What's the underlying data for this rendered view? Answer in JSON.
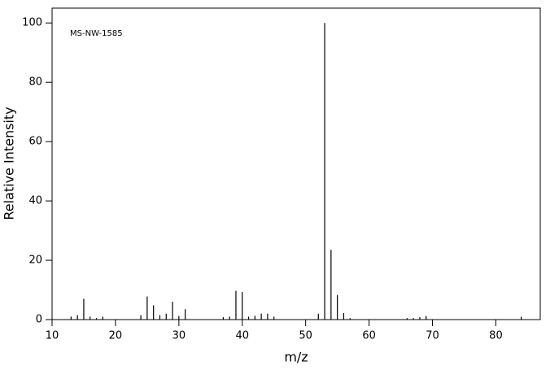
{
  "chart_data": {
    "type": "spectrum",
    "annotation": "MS-NW-1585",
    "x_label": "m/z",
    "y_label": "Relative Intensity",
    "x": [
      13,
      14,
      15,
      16,
      17,
      18,
      24,
      25,
      26,
      27,
      28,
      29,
      30,
      31,
      37,
      38,
      39,
      40,
      41,
      42,
      43,
      44,
      45,
      52,
      53,
      54,
      55,
      56,
      57,
      66,
      67,
      68,
      69,
      84
    ],
    "values": [
      1,
      1.5,
      7,
      1,
      0.5,
      1,
      1.5,
      7.8,
      4.8,
      1.5,
      2,
      6,
      1.2,
      3.5,
      0.8,
      1,
      9.7,
      9.3,
      1,
      1.3,
      2,
      2,
      1,
      2,
      100,
      23.5,
      8.3,
      2.2,
      0.5,
      0.5,
      0.5,
      0.8,
      1.2,
      1
    ],
    "color": "#000000",
    "xlim": [
      10,
      87
    ],
    "xticks": [
      10,
      20,
      30,
      40,
      50,
      60,
      70,
      80
    ],
    "ylim": [
      0,
      105
    ],
    "yticks": [
      0,
      20,
      40,
      60,
      80,
      100
    ]
  }
}
